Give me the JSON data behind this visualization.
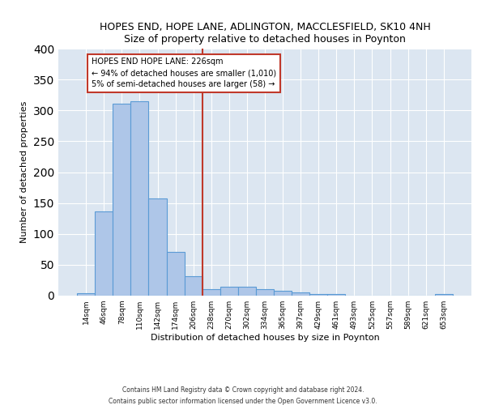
{
  "title": "HOPES END, HOPE LANE, ADLINGTON, MACCLESFIELD, SK10 4NH",
  "subtitle": "Size of property relative to detached houses in Poynton",
  "xlabel": "Distribution of detached houses by size in Poynton",
  "ylabel": "Number of detached properties",
  "footnote1": "Contains HM Land Registry data © Crown copyright and database right 2024.",
  "footnote2": "Contains public sector information licensed under the Open Government Licence v3.0.",
  "annotation_line1": "HOPES END HOPE LANE: 226sqm",
  "annotation_line2": "← 94% of detached houses are smaller (1,010)",
  "annotation_line3": "5% of semi-detached houses are larger (58) →",
  "bar_labels": [
    "14sqm",
    "46sqm",
    "78sqm",
    "110sqm",
    "142sqm",
    "174sqm",
    "206sqm",
    "238sqm",
    "270sqm",
    "302sqm",
    "334sqm",
    "365sqm",
    "397sqm",
    "429sqm",
    "461sqm",
    "493sqm",
    "525sqm",
    "557sqm",
    "589sqm",
    "621sqm",
    "653sqm"
  ],
  "bar_values": [
    4,
    136,
    311,
    315,
    157,
    71,
    32,
    10,
    14,
    14,
    10,
    8,
    5,
    3,
    3,
    0,
    0,
    0,
    0,
    0,
    3
  ],
  "bar_color": "#aec6e8",
  "bar_edge_color": "#5b9bd5",
  "vline_color": "#c0392b",
  "annotation_box_edge": "#c0392b",
  "background_color": "#ffffff",
  "axes_bg_color": "#dce6f1",
  "grid_color": "#ffffff",
  "ylim": [
    0,
    400
  ],
  "yticks": [
    0,
    50,
    100,
    150,
    200,
    250,
    300,
    350,
    400
  ],
  "vline_pos": 6.5
}
